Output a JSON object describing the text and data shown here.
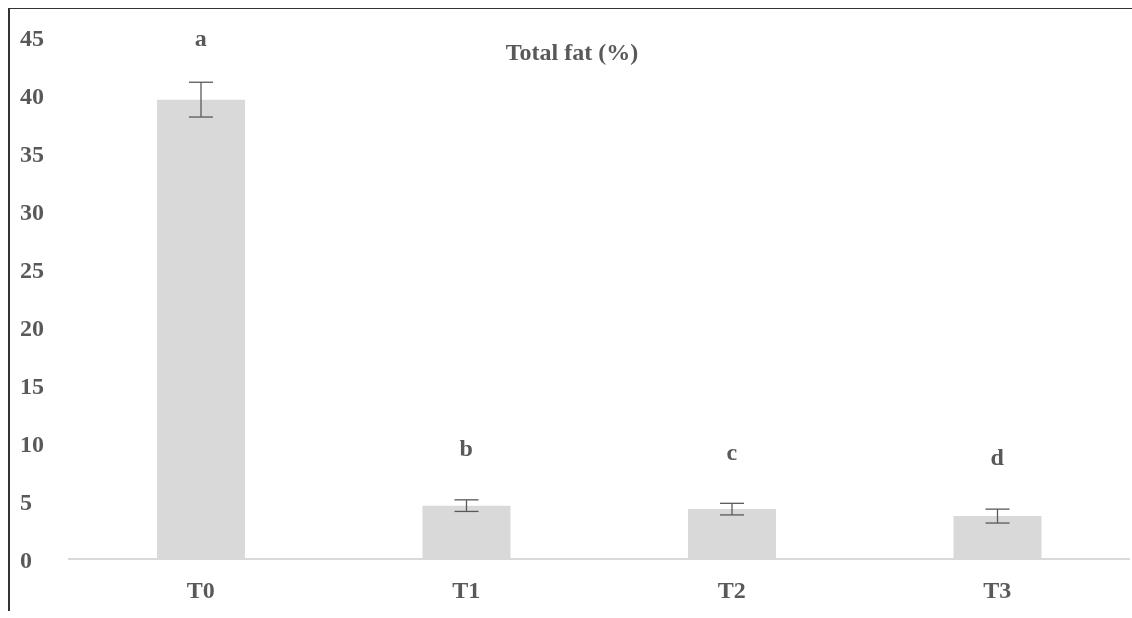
{
  "chart_data": {
    "type": "bar",
    "title": "Total fat (%)",
    "categories": [
      "T0",
      "T1",
      "T2",
      "T3"
    ],
    "values": [
      39.6,
      4.6,
      4.3,
      3.7
    ],
    "errors": [
      1.5,
      0.5,
      0.5,
      0.6
    ],
    "color": "#d9d9d9",
    "ylim": [
      0,
      45
    ],
    "yticks": [
      0,
      5,
      10,
      15,
      20,
      25,
      30,
      35,
      40,
      45
    ],
    "grid": false,
    "annotations": [
      "a",
      "b",
      "c",
      "d"
    ]
  }
}
